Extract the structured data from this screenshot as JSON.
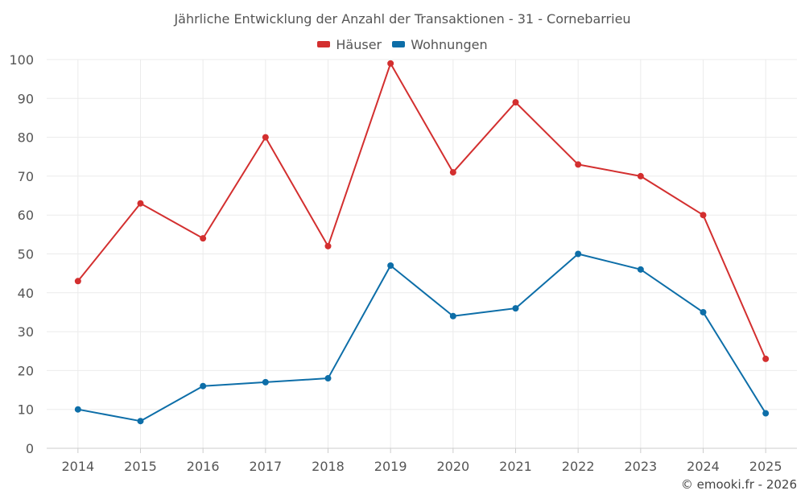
{
  "colors": {
    "houses": "#d32f2f",
    "apartments": "#0d6ea8",
    "grid": "#ebebeb",
    "axis": "#cccccc"
  },
  "chart_data": {
    "type": "line",
    "title": "Jährliche Entwicklung der Anzahl der Transaktionen - 31 - Cornebarrieu",
    "categories": [
      "2014",
      "2015",
      "2016",
      "2017",
      "2018",
      "2019",
      "2020",
      "2021",
      "2022",
      "2023",
      "2024",
      "2025"
    ],
    "series": [
      {
        "name": "Häuser",
        "color": "#d32f2f",
        "values": [
          43,
          63,
          54,
          80,
          52,
          99,
          71,
          89,
          73,
          70,
          60,
          23
        ]
      },
      {
        "name": "Wohnungen",
        "color": "#0d6ea8",
        "values": [
          10,
          7,
          16,
          17,
          18,
          47,
          34,
          36,
          50,
          46,
          35,
          9
        ]
      }
    ],
    "ylim": [
      0,
      100
    ],
    "yticks": [
      0,
      10,
      20,
      30,
      40,
      50,
      60,
      70,
      80,
      90,
      100
    ],
    "grid": true,
    "legend_position": "top-center",
    "xlabel": "",
    "ylabel": ""
  },
  "credit": "© emooki.fr - 2026"
}
